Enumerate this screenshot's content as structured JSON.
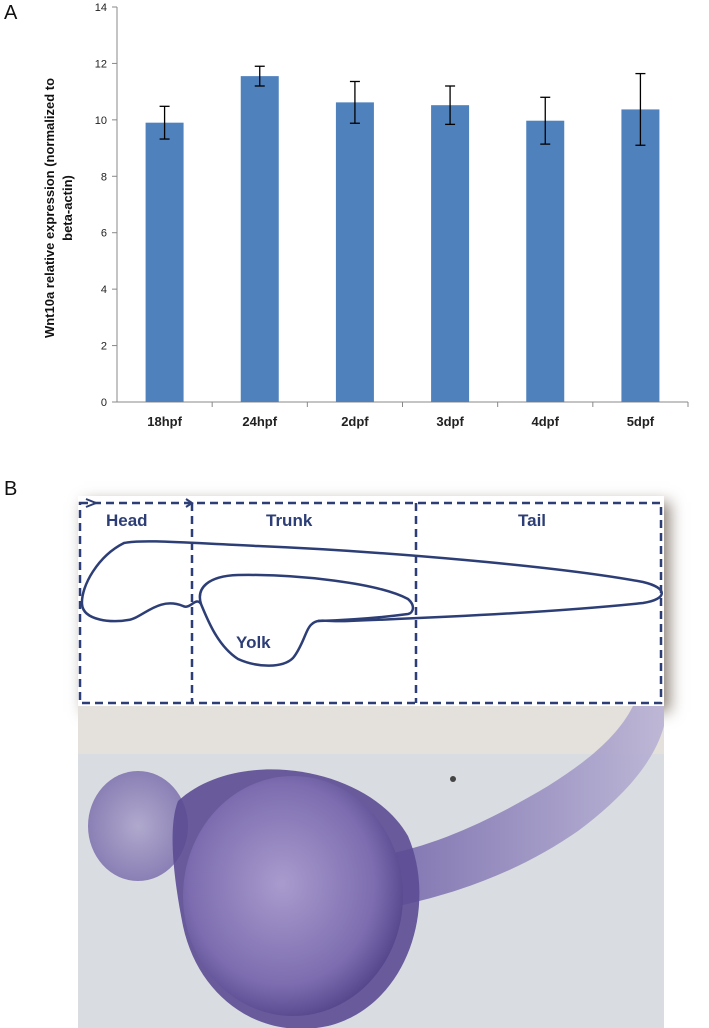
{
  "panels": {
    "a_label": "A",
    "b_label": "B"
  },
  "chart_data": {
    "type": "bar",
    "categories": [
      "18hpf",
      "24hpf",
      "2dpf",
      "3dpf",
      "4dpf",
      "5dpf"
    ],
    "values": [
      9.9,
      11.55,
      10.62,
      10.52,
      9.97,
      10.37
    ],
    "error": [
      0.58,
      0.35,
      0.74,
      0.68,
      0.83,
      1.27
    ],
    "ylabel": "Wnt10a relative expression (normalized to beta-actin)",
    "ylabel_lines": [
      "Wnt10a relative expression (normalized to",
      "beta-actin)"
    ],
    "xlabel": "",
    "ylim": [
      0,
      14
    ],
    "yticks": [
      0,
      2,
      4,
      6,
      8,
      10,
      12,
      14
    ],
    "bar_color": "#4f81bd",
    "grid": false,
    "legend": "none"
  },
  "diagram": {
    "regions": [
      "Head",
      "Trunk",
      "Tail"
    ],
    "yolk_label": "Yolk",
    "line_color": "#2c3e75"
  },
  "photo": {
    "description_icon": "zebrafish-embryo-image",
    "stain_color": "#6b5a9e"
  }
}
